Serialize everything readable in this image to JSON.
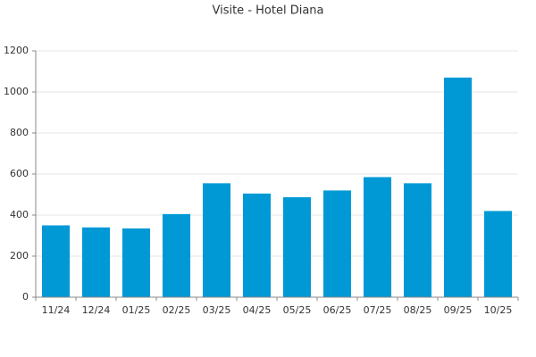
{
  "chart_data": {
    "type": "bar",
    "title": "Visite - Hotel Diana",
    "categories": [
      "11/24",
      "12/24",
      "01/25",
      "02/25",
      "03/25",
      "04/25",
      "05/25",
      "06/25",
      "07/25",
      "08/25",
      "09/25",
      "10/25"
    ],
    "values": [
      350,
      340,
      335,
      405,
      555,
      505,
      487,
      520,
      585,
      555,
      1070,
      420
    ],
    "color": "#0099d6",
    "ylim": [
      0,
      1200
    ],
    "yticks": [
      0,
      200,
      400,
      600,
      800,
      1000,
      1200
    ],
    "grid": true
  }
}
